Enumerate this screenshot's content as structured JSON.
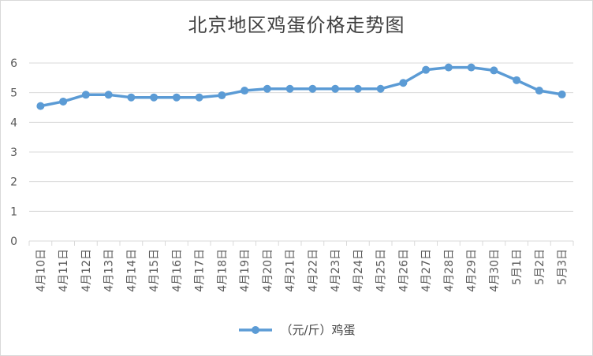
{
  "chart_data": {
    "type": "line",
    "title": "北京地区鸡蛋价格走势图",
    "xlabel": "",
    "ylabel": "",
    "ylim": [
      0,
      6
    ],
    "yticks": [
      "0",
      "1",
      "2",
      "3",
      "4",
      "5",
      "6"
    ],
    "grid": true,
    "legend_position": "bottom",
    "categories": [
      "4月10日",
      "4月11日",
      "4月12日",
      "4月13日",
      "4月14日",
      "4月15日",
      "4月16日",
      "4月17日",
      "4月18日",
      "4月19日",
      "4月20日",
      "4月21日",
      "4月22日",
      "4月23日",
      "4月24日",
      "4月25日",
      "4月26日",
      "4月27日",
      "4月28日",
      "4月29日",
      "4月30日",
      "5月1日",
      "5月2日",
      "5月3日"
    ],
    "series": [
      {
        "name": "（元/斤）鸡蛋",
        "color": "#5b9bd5",
        "values": [
          4.55,
          4.7,
          4.93,
          4.93,
          4.84,
          4.84,
          4.84,
          4.84,
          4.91,
          5.07,
          5.13,
          5.13,
          5.13,
          5.13,
          5.13,
          5.13,
          5.33,
          5.77,
          5.85,
          5.85,
          5.75,
          5.42,
          5.07,
          4.94
        ]
      }
    ]
  }
}
